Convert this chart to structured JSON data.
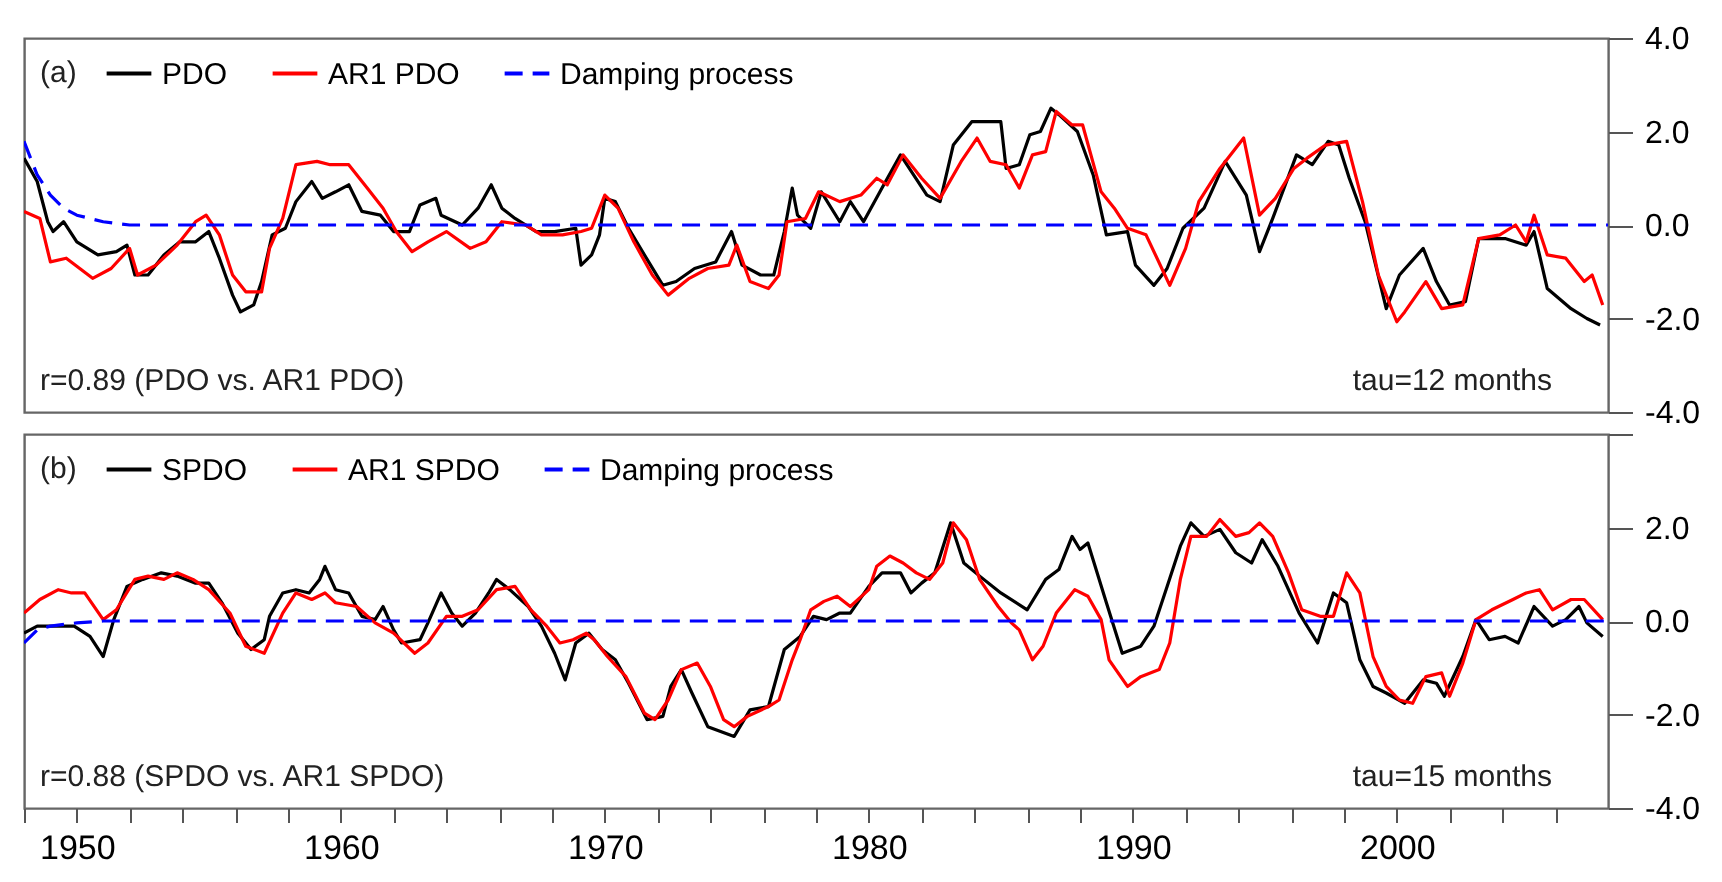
{
  "chart_data": [
    {
      "type": "line",
      "title": "(a)",
      "annotations": [
        "r=0.89 (PDO vs. AR1 PDO)",
        "tau=12 months"
      ],
      "xlim": [
        1948,
        2008
      ],
      "ylim": [
        -4,
        4
      ],
      "yticks": [
        {
          "value": -4,
          "label": "-4.0"
        },
        {
          "value": -2,
          "label": "-2.0"
        },
        {
          "value": 0,
          "label": "0.0"
        },
        {
          "value": 2,
          "label": "2.0"
        },
        {
          "value": 4,
          "label": "4.0"
        }
      ],
      "tick_labels": "y",
      "legend": "top left",
      "series": [
        {
          "name": "PDO",
          "color": "#000000",
          "line_style": "solid",
          "x": [
            1948.0,
            1948.5,
            1948.9,
            1949.1,
            1949.5,
            1950.0,
            1950.8,
            1951.5,
            1951.9,
            1952.2,
            1952.7,
            1953.3,
            1953.9,
            1954.5,
            1955.0,
            1955.4,
            1955.9,
            1956.2,
            1956.7,
            1957.0,
            1957.4,
            1957.9,
            1958.3,
            1958.9,
            1959.3,
            1959.8,
            1960.3,
            1960.8,
            1961.5,
            1962.0,
            1962.6,
            1963.0,
            1963.6,
            1963.8,
            1964.6,
            1965.2,
            1965.7,
            1966.1,
            1966.6,
            1967.4,
            1968.1,
            1968.9,
            1969.1,
            1969.5,
            1969.8,
            1970.0,
            1970.4,
            1970.9,
            1971.5,
            1972.2,
            1972.7,
            1973.4,
            1974.2,
            1974.8,
            1975.2,
            1975.9,
            1976.4,
            1976.8,
            1977.1,
            1977.3,
            1977.8,
            1978.2,
            1978.9,
            1979.3,
            1979.8,
            1980.5,
            1981.2,
            1982.2,
            1982.7,
            1983.2,
            1983.9,
            1985.0,
            1985.2,
            1985.7,
            1986.1,
            1986.5,
            1986.9,
            1987.2,
            1987.9,
            1988.5,
            1989.0,
            1989.8,
            1990.1,
            1990.8,
            1991.3,
            1991.9,
            1992.7,
            1993.5,
            1994.3,
            1994.8,
            1995.3,
            1996.2,
            1996.8,
            1997.4,
            1997.8,
            1998.2,
            1998.8,
            1999.6,
            2000.1,
            2001.0,
            2001.5,
            2002.0,
            2002.6,
            2003.1,
            2004.1,
            2004.9,
            2005.2,
            2005.7,
            2006.6,
            2007.2,
            2007.7
          ],
          "values": [
            1.43,
            0.93,
            0.07,
            -0.14,
            0.07,
            -0.36,
            -0.64,
            -0.57,
            -0.43,
            -1.07,
            -1.07,
            -0.64,
            -0.36,
            -0.36,
            -0.14,
            -0.71,
            -1.5,
            -1.86,
            -1.71,
            -1.21,
            -0.21,
            -0.07,
            0.5,
            0.93,
            0.57,
            0.71,
            0.86,
            0.29,
            0.21,
            -0.14,
            -0.14,
            0.43,
            0.57,
            0.21,
            0,
            0.36,
            0.86,
            0.36,
            0.14,
            -0.14,
            -0.14,
            -0.07,
            -0.86,
            -0.64,
            -0.21,
            0.57,
            0.5,
            -0.07,
            -0.64,
            -1.29,
            -1.21,
            -0.93,
            -0.79,
            -0.14,
            -0.86,
            -1.07,
            -1.07,
            -0.14,
            0.79,
            0.21,
            -0.07,
            0.71,
            0.07,
            0.5,
            0.07,
            0.79,
            1.5,
            0.64,
            0.5,
            1.71,
            2.21,
            2.21,
            1.21,
            1.29,
            1.93,
            2.0,
            2.5,
            2.36,
            2.0,
            1.07,
            -0.21,
            -0.14,
            -0.86,
            -1.29,
            -0.93,
            -0.07,
            0.36,
            1.36,
            0.64,
            -0.57,
            0.14,
            1.5,
            1.29,
            1.79,
            1.71,
            1.0,
            0.07,
            -1.79,
            -1.07,
            -0.5,
            -1.21,
            -1.71,
            -1.64,
            -0.29,
            -0.29,
            -0.43,
            -0.14,
            -1.36,
            -1.79,
            -2.0,
            -2.14
          ]
        },
        {
          "name": "AR1 PDO",
          "color": "#ff0000",
          "line_style": "solid",
          "x": [
            1948.0,
            1948.6,
            1949.0,
            1949.6,
            1950.6,
            1951.3,
            1952.0,
            1952.3,
            1953.0,
            1953.8,
            1954.5,
            1954.9,
            1955.4,
            1955.9,
            1956.4,
            1957.0,
            1957.3,
            1957.8,
            1958.3,
            1959.1,
            1959.6,
            1960.3,
            1961.0,
            1961.6,
            1962.1,
            1962.7,
            1963.3,
            1964.0,
            1964.9,
            1965.5,
            1966.1,
            1967.0,
            1967.6,
            1968.4,
            1969.1,
            1969.5,
            1970.0,
            1970.5,
            1971.1,
            1971.8,
            1972.4,
            1973.2,
            1973.9,
            1974.7,
            1975.0,
            1975.5,
            1976.2,
            1976.6,
            1976.9,
            1977.6,
            1978.1,
            1978.9,
            1979.7,
            1980.3,
            1980.7,
            1981.3,
            1982.0,
            1982.7,
            1983.5,
            1984.1,
            1984.6,
            1985.2,
            1985.7,
            1986.2,
            1986.7,
            1987.1,
            1987.7,
            1988.1,
            1988.8,
            1989.3,
            1989.8,
            1990.5,
            1991.4,
            1992.0,
            1992.5,
            1993.3,
            1994.2,
            1994.8,
            1995.4,
            1996.1,
            1996.6,
            1997.3,
            1998.1,
            1998.7,
            1999.3,
            2000.0,
            2000.3,
            2001.1,
            2001.7,
            2002.5,
            2003.1,
            2003.9,
            2004.5,
            2004.9,
            2005.2,
            2005.7,
            2006.4,
            2007.1,
            2007.4,
            2007.8
          ],
          "values": [
            0.29,
            0.14,
            -0.79,
            -0.71,
            -1.14,
            -0.93,
            -0.5,
            -1.07,
            -0.86,
            -0.43,
            0.07,
            0.21,
            -0.21,
            -1.07,
            -1.43,
            -1.43,
            -0.5,
            0.14,
            1.29,
            1.36,
            1.29,
            1.29,
            0.79,
            0.36,
            -0.14,
            -0.57,
            -0.36,
            -0.14,
            -0.5,
            -0.36,
            0.07,
            0,
            -0.21,
            -0.21,
            -0.14,
            -0.07,
            0.64,
            0.36,
            -0.36,
            -1.07,
            -1.5,
            -1.14,
            -0.93,
            -0.86,
            -0.43,
            -1.21,
            -1.36,
            -1.07,
            0.07,
            0.14,
            0.71,
            0.5,
            0.64,
            1.0,
            0.86,
            1.5,
            1.0,
            0.57,
            1.36,
            1.86,
            1.36,
            1.29,
            0.79,
            1.5,
            1.57,
            2.43,
            2.14,
            2.14,
            0.71,
            0.36,
            -0.07,
            -0.21,
            -1.29,
            -0.5,
            0.5,
            1.21,
            1.86,
            0.21,
            0.57,
            1.21,
            1.43,
            1.71,
            1.79,
            0.5,
            -1.07,
            -2.07,
            -1.86,
            -1.21,
            -1.79,
            -1.71,
            -0.29,
            -0.21,
            0,
            -0.36,
            0.21,
            -0.64,
            -0.71,
            -1.21,
            -1.07,
            -1.71
          ]
        },
        {
          "name": "Damping process",
          "color": "#0000ff",
          "line_style": "dashed",
          "x": [
            1948.0,
            1948.5,
            1949.0,
            1949.5,
            1950.0,
            1951.0,
            1952.0,
            2008.0
          ],
          "values": [
            1.79,
            1.07,
            0.64,
            0.36,
            0.21,
            0.07,
            0,
            0
          ]
        }
      ]
    },
    {
      "type": "line",
      "title": "(b)",
      "annotations": [
        "r=0.88 (SPDO vs. AR1 SPDO)",
        "tau=15 months"
      ],
      "xlim": [
        1948,
        2008
      ],
      "xticks": [
        {
          "value": 1948,
          "label": null
        },
        1950,
        {
          "value": 1952,
          "label": null
        },
        {
          "value": 1954,
          "label": null
        },
        {
          "value": 1956,
          "label": null
        },
        {
          "value": 1958,
          "label": null
        },
        1960,
        {
          "value": 1962,
          "label": null
        },
        {
          "value": 1964,
          "label": null
        },
        {
          "value": 1966,
          "label": null
        },
        {
          "value": 1968,
          "label": null
        },
        1970,
        {
          "value": 1972,
          "label": null
        },
        {
          "value": 1974,
          "label": null
        },
        {
          "value": 1976,
          "label": null
        },
        {
          "value": 1978,
          "label": null
        },
        1980,
        {
          "value": 1982,
          "label": null
        },
        {
          "value": 1984,
          "label": null
        },
        {
          "value": 1986,
          "label": null
        },
        {
          "value": 1988,
          "label": null
        },
        1990,
        {
          "value": 1992,
          "label": null
        },
        {
          "value": 1994,
          "label": null
        },
        {
          "value": 1996,
          "label": null
        },
        {
          "value": 1998,
          "label": null
        },
        2000,
        {
          "value": 2002,
          "label": null
        },
        {
          "value": 2004,
          "label": null
        },
        {
          "value": 2006,
          "label": null
        }
      ],
      "ylim": [
        -4,
        4
      ],
      "yticks": [
        {
          "value": -4,
          "label": "-4.0"
        },
        {
          "value": -2,
          "label": "-2.0"
        },
        {
          "value": 0,
          "label": "0.0"
        },
        {
          "value": 2,
          "label": "2.0"
        },
        {
          "value": 4,
          "label": null
        }
      ],
      "legend": "top left",
      "series": [
        {
          "name": "SPDO",
          "color": "#000000",
          "line_style": "solid",
          "x": [
            1948.0,
            1948.5,
            1949.3,
            1949.9,
            1950.5,
            1951.0,
            1951.4,
            1951.9,
            1952.5,
            1953.2,
            1953.8,
            1954.5,
            1955.0,
            1955.5,
            1956.1,
            1956.6,
            1957.1,
            1957.3,
            1957.8,
            1958.3,
            1958.8,
            1959.2,
            1959.4,
            1959.8,
            1960.3,
            1960.8,
            1961.3,
            1961.6,
            1962.0,
            1962.3,
            1963.0,
            1963.3,
            1963.8,
            1964.2,
            1964.6,
            1965.1,
            1965.6,
            1965.9,
            1966.4,
            1967.1,
            1967.6,
            1968.1,
            1968.5,
            1968.9,
            1969.4,
            1969.9,
            1970.4,
            1970.9,
            1971.6,
            1972.2,
            1972.5,
            1972.9,
            1973.3,
            1973.9,
            1974.9,
            1975.5,
            1976.2,
            1976.8,
            1977.4,
            1977.9,
            1978.4,
            1978.9,
            1979.3,
            1980.0,
            1980.5,
            1981.2,
            1981.6,
            1982.0,
            1982.5,
            1983.1,
            1983.6,
            1984.2,
            1985.0,
            1986.0,
            1986.7,
            1987.2,
            1987.7,
            1988.0,
            1988.3,
            1989.0,
            1989.6,
            1990.3,
            1990.8,
            1991.3,
            1991.8,
            1992.2,
            1992.7,
            1993.3,
            1993.9,
            1994.5,
            1994.9,
            1995.5,
            1996.3,
            1997.0,
            1997.6,
            1998.1,
            1998.6,
            1999.1,
            1999.6,
            2000.3,
            2001.0,
            2001.5,
            2001.8,
            2002.5,
            2003.0,
            2003.5,
            2004.1,
            2004.6,
            2005.2,
            2005.9,
            2006.4,
            2006.9,
            2007.2,
            2007.8
          ],
          "values": [
            -0.26,
            -0.11,
            -0.11,
            -0.11,
            -0.33,
            -0.76,
            0.03,
            0.74,
            0.89,
            1.03,
            0.96,
            0.81,
            0.81,
            0.39,
            -0.26,
            -0.61,
            -0.4,
            0.1,
            0.6,
            0.67,
            0.6,
            0.89,
            1.17,
            0.67,
            0.6,
            0.1,
            0.03,
            0.31,
            -0.19,
            -0.47,
            -0.4,
            -0.04,
            0.6,
            0.17,
            -0.11,
            0.17,
            0.6,
            0.89,
            0.67,
            0.31,
            -0.11,
            -0.69,
            -1.26,
            -0.47,
            -0.26,
            -0.61,
            -0.83,
            -1.33,
            -2.11,
            -2.04,
            -1.4,
            -1.04,
            -1.54,
            -2.26,
            -2.47,
            -1.9,
            -1.83,
            -0.61,
            -0.33,
            0.1,
            0.03,
            0.17,
            0.17,
            0.74,
            1.03,
            1.03,
            0.6,
            0.81,
            1.03,
            2.1,
            1.24,
            0.96,
            0.6,
            0.24,
            0.89,
            1.1,
            1.81,
            1.53,
            1.67,
            0.39,
            -0.69,
            -0.54,
            -0.11,
            0.74,
            1.6,
            2.1,
            1.81,
            1.96,
            1.46,
            1.24,
            1.74,
            1.17,
            0.17,
            -0.47,
            0.6,
            0.39,
            -0.83,
            -1.4,
            -1.54,
            -1.76,
            -1.26,
            -1.33,
            -1.61,
            -0.76,
            0.03,
            -0.4,
            -0.33,
            -0.47,
            0.31,
            -0.11,
            0.03,
            0.31,
            -0.04,
            -0.33
          ]
        },
        {
          "name": "AR1 SPDO",
          "color": "#ff0000",
          "line_style": "solid",
          "x": [
            1948.0,
            1948.6,
            1949.3,
            1949.8,
            1950.3,
            1951.0,
            1951.5,
            1952.2,
            1952.7,
            1953.3,
            1953.8,
            1954.4,
            1955.0,
            1955.8,
            1956.4,
            1957.1,
            1957.8,
            1958.3,
            1958.9,
            1959.4,
            1959.8,
            1960.6,
            1961.3,
            1962.0,
            1962.8,
            1963.3,
            1964.0,
            1964.6,
            1965.2,
            1965.9,
            1966.6,
            1967.2,
            1967.8,
            1968.3,
            1968.8,
            1969.3,
            1969.6,
            1970.1,
            1970.8,
            1971.5,
            1971.9,
            1972.4,
            1972.9,
            1973.5,
            1974.0,
            1974.5,
            1974.9,
            1975.4,
            1976.2,
            1976.6,
            1977.1,
            1977.4,
            1977.8,
            1978.3,
            1978.8,
            1979.3,
            1980.0,
            1980.3,
            1980.8,
            1981.3,
            1981.8,
            1982.3,
            1982.8,
            1983.2,
            1983.7,
            1984.2,
            1984.9,
            1985.4,
            1985.7,
            1986.2,
            1986.6,
            1987.1,
            1987.8,
            1988.3,
            1988.8,
            1989.1,
            1989.8,
            1990.3,
            1991.0,
            1991.4,
            1991.8,
            1992.2,
            1992.8,
            1993.3,
            1993.9,
            1994.4,
            1994.8,
            1995.3,
            1995.9,
            1996.4,
            1997.1,
            1997.6,
            1998.1,
            1998.6,
            1999.1,
            1999.6,
            2000.1,
            2000.6,
            2001.1,
            2001.7,
            2002.0,
            2002.5,
            2003.0,
            2003.6,
            2004.4,
            2004.9,
            2005.4,
            2005.9,
            2006.6,
            2007.1,
            2007.8
          ],
          "values": [
            0.17,
            0.46,
            0.67,
            0.6,
            0.6,
            0.03,
            0.24,
            0.89,
            0.96,
            0.89,
            1.03,
            0.89,
            0.67,
            0.17,
            -0.54,
            -0.69,
            0.17,
            0.6,
            0.46,
            0.6,
            0.39,
            0.31,
            -0.04,
            -0.26,
            -0.69,
            -0.47,
            0.1,
            0.1,
            0.24,
            0.67,
            0.74,
            0.24,
            -0.11,
            -0.47,
            -0.4,
            -0.26,
            -0.4,
            -0.76,
            -1.19,
            -1.97,
            -2.11,
            -1.69,
            -1.04,
            -0.9,
            -1.4,
            -2.11,
            -2.26,
            -2.04,
            -1.83,
            -1.69,
            -0.83,
            -0.4,
            0.24,
            0.42,
            0.53,
            0.31,
            0.67,
            1.17,
            1.39,
            1.24,
            1.03,
            0.89,
            1.24,
            2.1,
            1.74,
            0.89,
            0.31,
            -0.04,
            -0.19,
            -0.83,
            -0.54,
            0.17,
            0.67,
            0.53,
            0.03,
            -0.83,
            -1.4,
            -1.19,
            -1.04,
            -0.47,
            0.89,
            1.81,
            1.81,
            2.17,
            1.81,
            1.89,
            2.1,
            1.81,
            1.03,
            0.24,
            0.1,
            0.1,
            1.03,
            0.6,
            -0.76,
            -1.4,
            -1.69,
            -1.76,
            -1.19,
            -1.11,
            -1.61,
            -0.9,
            0.03,
            0.24,
            0.46,
            0.6,
            0.67,
            0.24,
            0.46,
            0.46,
            0.03
          ]
        },
        {
          "name": "Damping process",
          "color": "#0000ff",
          "line_style": "dashed",
          "x": [
            1948.0,
            1948.5,
            1949.0,
            1950.0,
            1951.0,
            2008.0
          ],
          "values": [
            -0.47,
            -0.19,
            -0.11,
            -0.04,
            0,
            0
          ]
        }
      ]
    }
  ]
}
